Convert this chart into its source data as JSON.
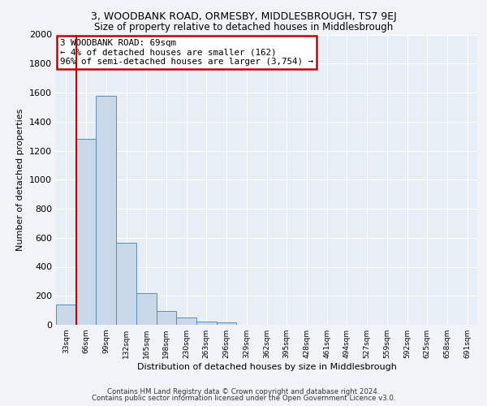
{
  "title1": "3, WOODBANK ROAD, ORMESBY, MIDDLESBROUGH, TS7 9EJ",
  "title2": "Size of property relative to detached houses in Middlesbrough",
  "xlabel": "Distribution of detached houses by size in Middlesbrough",
  "ylabel": "Number of detached properties",
  "bar_values": [
    140,
    1280,
    1575,
    565,
    220,
    95,
    50,
    25,
    15,
    0,
    0,
    0,
    0,
    0,
    0,
    0,
    0,
    0,
    0,
    0,
    0
  ],
  "categories": [
    "33sqm",
    "66sqm",
    "99sqm",
    "132sqm",
    "165sqm",
    "198sqm",
    "230sqm",
    "263sqm",
    "296sqm",
    "329sqm",
    "362sqm",
    "395sqm",
    "428sqm",
    "461sqm",
    "494sqm",
    "527sqm",
    "559sqm",
    "592sqm",
    "625sqm",
    "658sqm",
    "691sqm"
  ],
  "bar_color": "#c8d8e8",
  "bar_edge_color": "#5b8db8",
  "annotation_box_text": "3 WOODBANK ROAD: 69sqm\n← 4% of detached houses are smaller (162)\n96% of semi-detached houses are larger (3,754) →",
  "annotation_box_color": "#cc0000",
  "annotation_fill": "white",
  "ylim": [
    0,
    2000
  ],
  "yticks": [
    0,
    200,
    400,
    600,
    800,
    1000,
    1200,
    1400,
    1600,
    1800,
    2000
  ],
  "footer1": "Contains HM Land Registry data © Crown copyright and database right 2024.",
  "footer2": "Contains public sector information licensed under the Open Government Licence v3.0.",
  "bg_color": "#f0f4f8",
  "plot_bg_color": "#e8eef5",
  "red_line_x": 1.5
}
